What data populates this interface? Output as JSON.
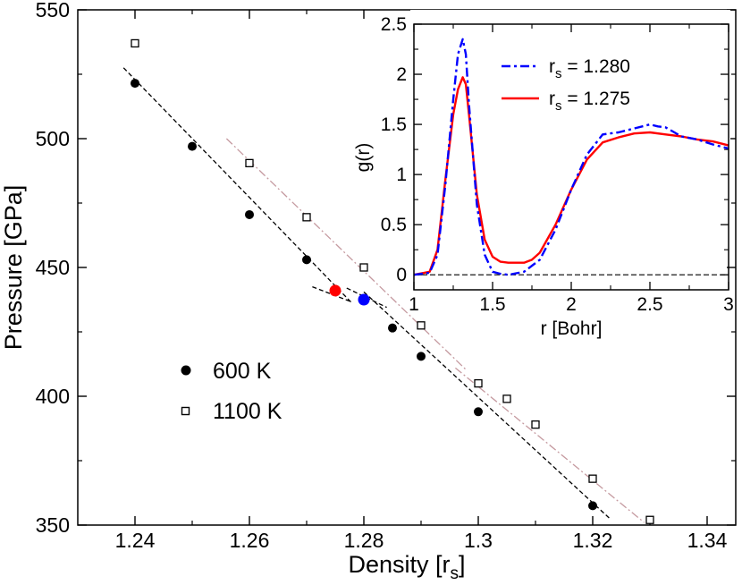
{
  "chart_data": [
    {
      "id": "main",
      "type": "scatter",
      "title": "",
      "xlabel": "Density [r",
      "xlabel_sub": "s",
      "xlabel_close": "]",
      "ylabel": "Pressure [GPa]",
      "xlim": [
        1.23,
        1.345
      ],
      "ylim": [
        350,
        550
      ],
      "xticks": [
        1.24,
        1.26,
        1.28,
        1.3,
        1.32,
        1.34
      ],
      "xtick_labels": [
        "1.24",
        "1.26",
        "1.28",
        "1.3",
        "1.32",
        "1.34"
      ],
      "yticks": [
        350,
        400,
        450,
        500,
        550
      ],
      "ytick_labels": [
        "350",
        "400",
        "450",
        "500",
        "550"
      ],
      "legend_position": "center-left",
      "series": [
        {
          "name": "600 K",
          "marker": "filled-circle",
          "color": "#000000",
          "points": [
            [
              1.24,
              521.5
            ],
            [
              1.25,
              497
            ],
            [
              1.26,
              470.5
            ],
            [
              1.27,
              453
            ],
            [
              1.285,
              426.5
            ],
            [
              1.29,
              415.5
            ],
            [
              1.3,
              394
            ],
            [
              1.32,
              357.5
            ]
          ]
        },
        {
          "name": "1100 K",
          "marker": "open-square",
          "color": "#000000",
          "points": [
            [
              1.24,
              537
            ],
            [
              1.26,
              490.5
            ],
            [
              1.27,
              469.5
            ],
            [
              1.28,
              450
            ],
            [
              1.29,
              427.5
            ],
            [
              1.3,
              405
            ],
            [
              1.305,
              399
            ],
            [
              1.31,
              389
            ],
            [
              1.32,
              368
            ],
            [
              1.33,
              352
            ]
          ]
        },
        {
          "name": "rs 1.275 point",
          "marker": "filled-circle-large",
          "color": "#ff0000",
          "points": [
            [
              1.275,
              441
            ]
          ]
        },
        {
          "name": "rs 1.280 point",
          "marker": "filled-circle-large",
          "color": "#0000ff",
          "points": [
            [
              1.28,
              437.5
            ]
          ]
        }
      ],
      "fits": [
        {
          "name": "600 K fit",
          "style": "dashed",
          "color": "#000000",
          "x": [
            1.238,
            1.278
          ],
          "y": [
            527.5,
            436
          ]
        },
        {
          "name": "600 K fit high density",
          "style": "dashed",
          "color": "#000000",
          "x": [
            1.28,
            1.323
          ],
          "y": [
            440.5,
            352.5
          ]
        },
        {
          "name": "1100 K fit",
          "style": "dash-dot",
          "color": "#c59aa0",
          "x": [
            1.256,
            1.298
          ],
          "y": [
            500,
            410
          ]
        },
        {
          "name": "1100 K fit high density",
          "style": "dash-dot",
          "color": "#c59aa0",
          "x": [
            1.296,
            1.329
          ],
          "y": [
            411,
            351
          ]
        },
        {
          "name": "tangent at 1.275",
          "style": "dashed",
          "color": "#000000",
          "x": [
            1.271,
            1.278
          ],
          "y": [
            442.5,
            436.5
          ]
        },
        {
          "name": "tangent at 1.280",
          "style": "dashed",
          "color": "#000000",
          "x": [
            1.277,
            1.284
          ],
          "y": [
            442,
            434.5
          ]
        }
      ]
    },
    {
      "id": "inset",
      "type": "line",
      "title": "",
      "xlabel": "r [Bohr]",
      "ylabel": "g(r)",
      "xlim": [
        1,
        3
      ],
      "ylim": [
        -0.15,
        2.5
      ],
      "xticks": [
        1,
        1.5,
        2,
        2.5,
        3
      ],
      "xtick_labels": [
        "1",
        "1.5",
        "2",
        "2.5",
        "3"
      ],
      "yticks": [
        0,
        0.5,
        1,
        1.5,
        2,
        2.5
      ],
      "ytick_labels": [
        "0",
        "0.5",
        "1",
        "1.5",
        "2",
        "2.5"
      ],
      "legend_position": "top-right",
      "zero_line": 0,
      "series": [
        {
          "name": "r",
          "name_sub": "s",
          "name_value": " = 1.280",
          "style": "dash-dot",
          "color": "#0000ff",
          "x": [
            1,
            1.1,
            1.15,
            1.2,
            1.25,
            1.28,
            1.31,
            1.33,
            1.35,
            1.4,
            1.45,
            1.5,
            1.55,
            1.6,
            1.7,
            1.8,
            1.9,
            2,
            2.1,
            2.2,
            2.3,
            2.4,
            2.5,
            2.55,
            2.6,
            2.7,
            2.8,
            2.9,
            3
          ],
          "y": [
            0,
            0.02,
            0.2,
            0.9,
            1.75,
            2.2,
            2.35,
            2.2,
            1.7,
            0.7,
            0.2,
            0.03,
            0.01,
            0.0,
            0.03,
            0.15,
            0.45,
            0.85,
            1.2,
            1.4,
            1.42,
            1.46,
            1.5,
            1.48,
            1.47,
            1.38,
            1.35,
            1.3,
            1.26
          ]
        },
        {
          "name": "r",
          "name_sub": "s",
          "name_value": " = 1.275",
          "style": "solid",
          "color": "#ff0000",
          "x": [
            1,
            1.1,
            1.15,
            1.2,
            1.25,
            1.28,
            1.31,
            1.33,
            1.35,
            1.4,
            1.45,
            1.5,
            1.55,
            1.6,
            1.7,
            1.75,
            1.8,
            1.9,
            2,
            2.1,
            2.2,
            2.3,
            2.4,
            2.5,
            2.6,
            2.7,
            2.8,
            2.9,
            3
          ],
          "y": [
            0,
            0.03,
            0.25,
            0.95,
            1.6,
            1.85,
            1.97,
            1.9,
            1.6,
            0.8,
            0.35,
            0.18,
            0.13,
            0.12,
            0.12,
            0.15,
            0.22,
            0.5,
            0.85,
            1.15,
            1.32,
            1.37,
            1.41,
            1.42,
            1.4,
            1.38,
            1.35,
            1.33,
            1.29
          ]
        }
      ]
    }
  ],
  "legend": {
    "items": [
      "600 K",
      "1100 K"
    ]
  }
}
